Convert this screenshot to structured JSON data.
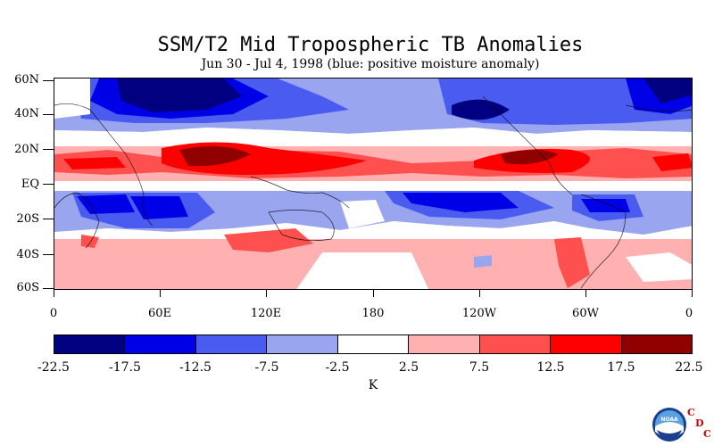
{
  "title": "SSM/T2 Mid Tropospheric TB Anomalies",
  "subtitle": "Jun 30 - Jul 4, 1998 (blue: positive moisture anomaly)",
  "y_labels": [
    "60N",
    "40N",
    "20N",
    "EQ",
    "20S",
    "40S",
    "60S"
  ],
  "x_labels": [
    "0",
    "60E",
    "120E",
    "180",
    "120W",
    "60W",
    "0"
  ],
  "colorbar": {
    "colors": [
      "#000080",
      "#0000e6",
      "#4a5cf0",
      "#9aa5f0",
      "#ffffff",
      "#ffb0b0",
      "#ff5050",
      "#ff0000",
      "#900000"
    ],
    "labels": [
      "-22.5",
      "-17.5",
      "-12.5",
      "-7.5",
      "-2.5",
      "2.5",
      "7.5",
      "12.5",
      "17.5",
      "22.5"
    ],
    "units": "K"
  },
  "logo": {
    "icon": "noaa-logo-icon",
    "text": "NOAA",
    "cdc": [
      "C",
      "D",
      "C"
    ]
  }
}
